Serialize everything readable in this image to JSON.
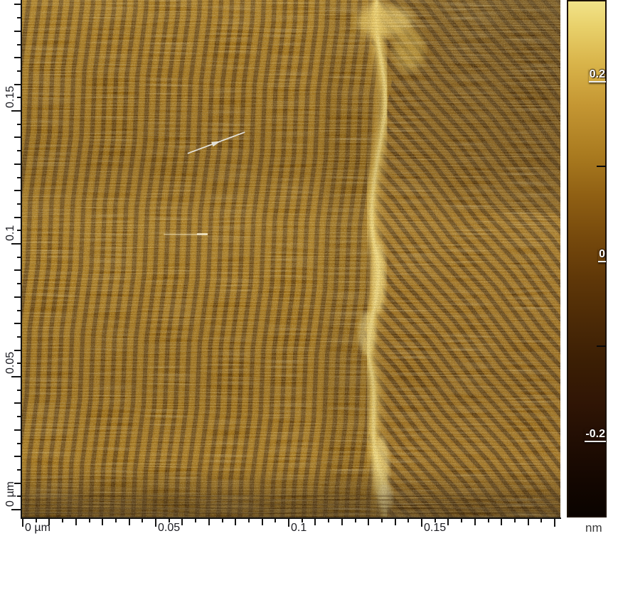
{
  "chart_data": {
    "type": "heatmap",
    "title": "",
    "description": "Scanning probe microscopy topograph: gold-brown surface with fine herringbone-like stripe pattern, a bright jagged near-vertical ridge right of center, and a diagonally striped terrace on the right side",
    "x_axis": {
      "unit": "µm",
      "range_um": [
        0,
        0.2
      ],
      "minor_tick_step_um": 0.005,
      "major_tick_step_um": 0.01,
      "labeled_ticks": [
        {
          "value_um": 0,
          "label": "0 µm"
        },
        {
          "value_um": 0.05,
          "label": "0.05"
        },
        {
          "value_um": 0.1,
          "label": "0.1"
        },
        {
          "value_um": 0.15,
          "label": "0.15"
        }
      ]
    },
    "y_axis": {
      "unit": "µm",
      "range_um": [
        0,
        0.192
      ],
      "minor_tick_step_um": 0.005,
      "major_tick_step_um": 0.01,
      "labeled_ticks": [
        {
          "value_um": 0,
          "label": "0 µm"
        },
        {
          "value_um": 0.05,
          "label": "0.05"
        },
        {
          "value_um": 0.1,
          "label": "0.1"
        },
        {
          "value_um": 0.15,
          "label": "0.15"
        }
      ]
    },
    "colorbar": {
      "unit_label": "nm",
      "value_range_nm": [
        -0.29,
        0.28
      ],
      "labeled_ticks": [
        {
          "value_nm": 0.2,
          "label": "0.2"
        },
        {
          "value_nm": 0,
          "label": "0"
        },
        {
          "value_nm": -0.2,
          "label": "-0.2"
        }
      ],
      "minor_tick_values_nm": [
        0.1,
        -0.1
      ],
      "gradient_stops": [
        {
          "pos": 0.0,
          "color": "#f2e388"
        },
        {
          "pos": 0.05,
          "color": "#e8d06a"
        },
        {
          "pos": 0.12,
          "color": "#d9b44a"
        },
        {
          "pos": 0.2,
          "color": "#c59733"
        },
        {
          "pos": 0.3,
          "color": "#a97a1f"
        },
        {
          "pos": 0.38,
          "color": "#8f5f13"
        },
        {
          "pos": 0.46,
          "color": "#76490c"
        },
        {
          "pos": 0.54,
          "color": "#5f3708"
        },
        {
          "pos": 0.62,
          "color": "#4c2a06"
        },
        {
          "pos": 0.7,
          "color": "#3b1e04"
        },
        {
          "pos": 0.78,
          "color": "#301505"
        },
        {
          "pos": 0.86,
          "color": "#200d03"
        },
        {
          "pos": 0.93,
          "color": "#140701"
        },
        {
          "pos": 1.0,
          "color": "#0a0300"
        }
      ]
    },
    "annotations": {
      "arrow": {
        "from_um": [
          0.062,
          0.134
        ],
        "to_um": [
          0.0835,
          0.142
        ],
        "color": "#f7f7f1"
      },
      "bright_streak": {
        "from_um": [
          0.053,
          0.1035
        ],
        "to_um": [
          0.0695,
          0.1035
        ],
        "color": "#fff3cc"
      }
    },
    "palette": {
      "terrace_light": "#a3700f",
      "terrace_dark": "#5c3806",
      "ridge_highlight": "#ffe080",
      "axis_color": "#141414",
      "axis_label_color": "#1c1c22",
      "colorbar_label_color": "#ffffff",
      "unit_label_color": "#3a3a3a",
      "background": "#ffffff"
    }
  }
}
